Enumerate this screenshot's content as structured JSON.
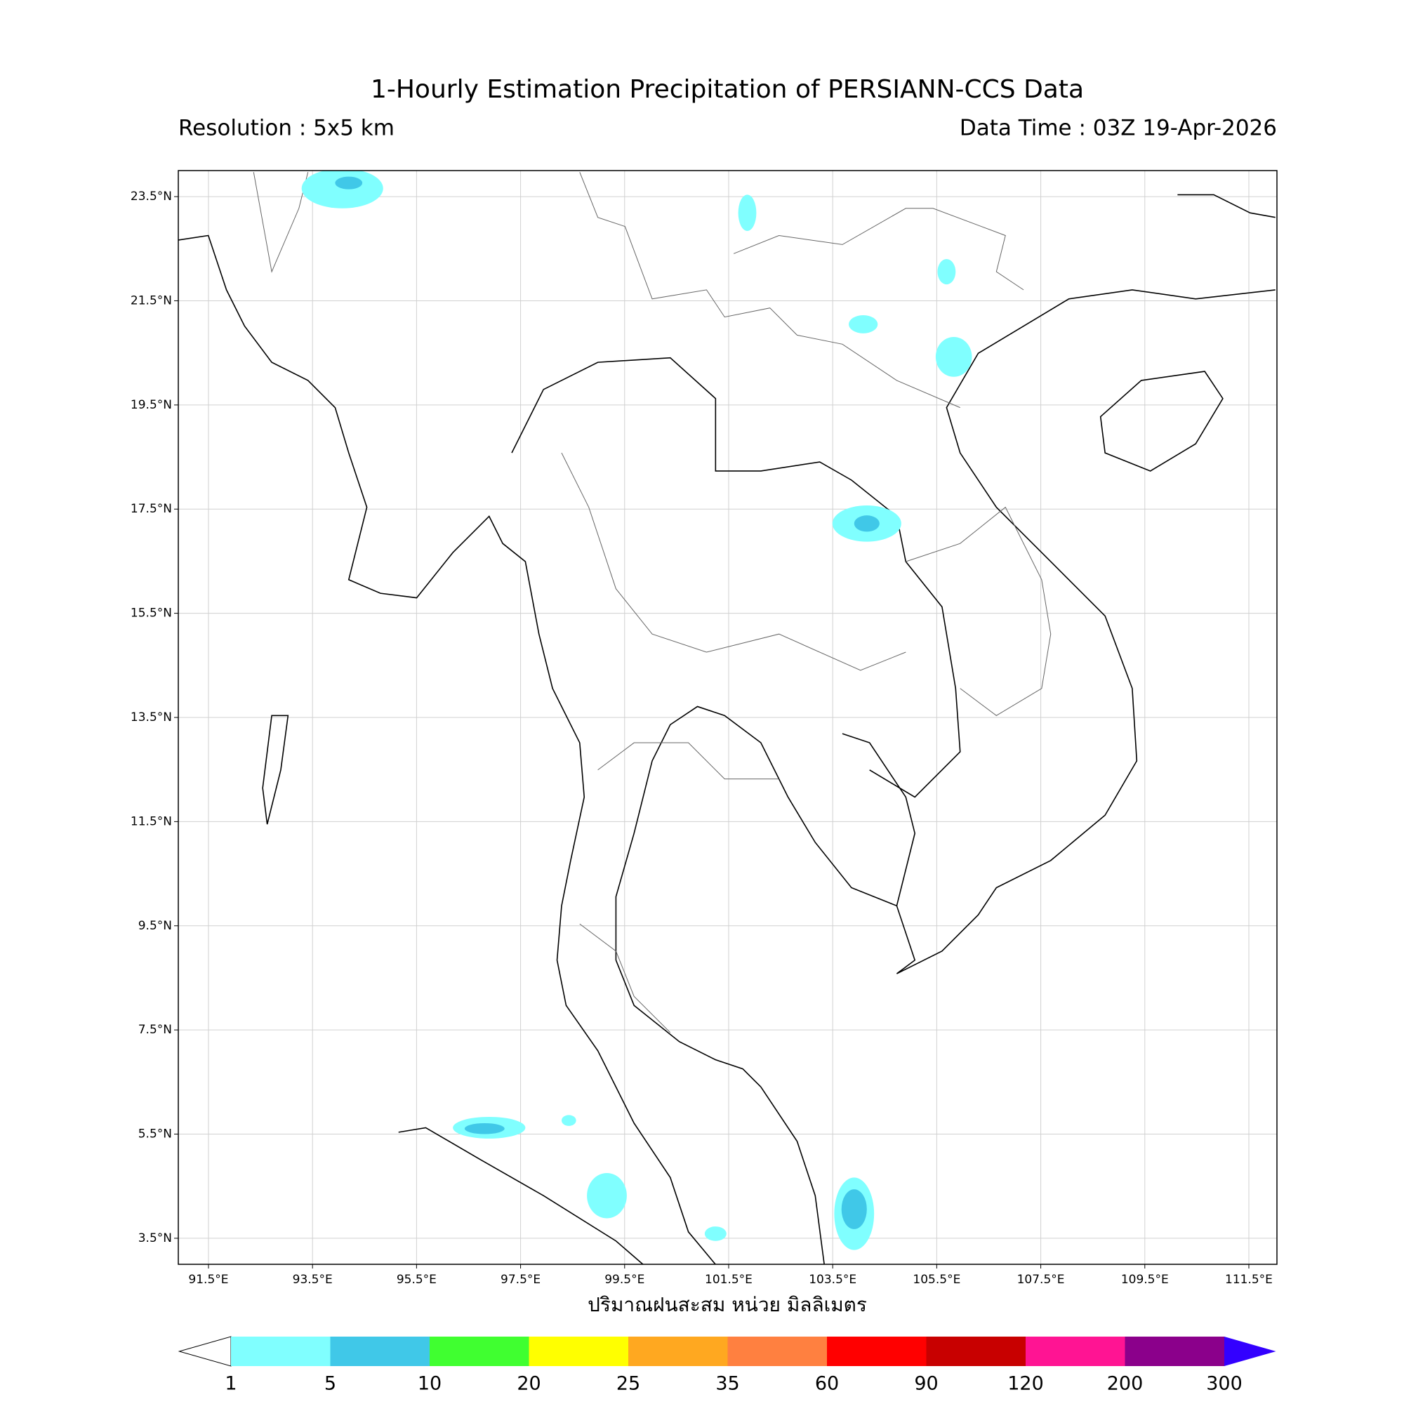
{
  "title": "1-Hourly Estimation Precipitation of PERSIANN-CCS Data",
  "resolution": "Resolution : 5x5 km",
  "data_time": "Data Time : 03Z 19-Apr-2026",
  "map": {
    "xlim": [
      90.92,
      112.04
    ],
    "ylim": [
      3.0,
      24.0
    ],
    "xticks": [
      {
        "value": 91.5,
        "label": "91.5°E"
      },
      {
        "value": 93.5,
        "label": "93.5°E"
      },
      {
        "value": 95.5,
        "label": "95.5°E"
      },
      {
        "value": 97.5,
        "label": "97.5°E"
      },
      {
        "value": 99.5,
        "label": "99.5°E"
      },
      {
        "value": 101.5,
        "label": "101.5°E"
      },
      {
        "value": 103.5,
        "label": "103.5°E"
      },
      {
        "value": 105.5,
        "label": "105.5°E"
      },
      {
        "value": 107.5,
        "label": "107.5°E"
      },
      {
        "value": 109.5,
        "label": "109.5°E"
      },
      {
        "value": 111.5,
        "label": "111.5°E"
      }
    ],
    "yticks": [
      {
        "value": 3.5,
        "label": "3.5°N"
      },
      {
        "value": 5.5,
        "label": "5.5°N"
      },
      {
        "value": 7.5,
        "label": "7.5°N"
      },
      {
        "value": 9.5,
        "label": "9.5°N"
      },
      {
        "value": 11.5,
        "label": "11.5°N"
      },
      {
        "value": 13.5,
        "label": "13.5°N"
      },
      {
        "value": 15.5,
        "label": "15.5°N"
      },
      {
        "value": 17.5,
        "label": "17.5°N"
      },
      {
        "value": 19.5,
        "label": "19.5°N"
      },
      {
        "value": 21.5,
        "label": "21.5°N"
      },
      {
        "value": 23.5,
        "label": "23.5°N"
      }
    ],
    "grid": true
  },
  "colorbar": {
    "label": "ปริมาณฝนสะสม หน่วย มิลลิเมตร",
    "levels": [
      1,
      5,
      10,
      20,
      25,
      35,
      60,
      90,
      120,
      200,
      300
    ],
    "colors": [
      "#80ffff",
      "#40c8e8",
      "#40ff30",
      "#ffff00",
      "#ffa820",
      "#ff8040",
      "#ff0000",
      "#c80000",
      "#ff1493",
      "#8b008b"
    ],
    "under_color": "#ffffff",
    "over_color": "#3300ff"
  }
}
